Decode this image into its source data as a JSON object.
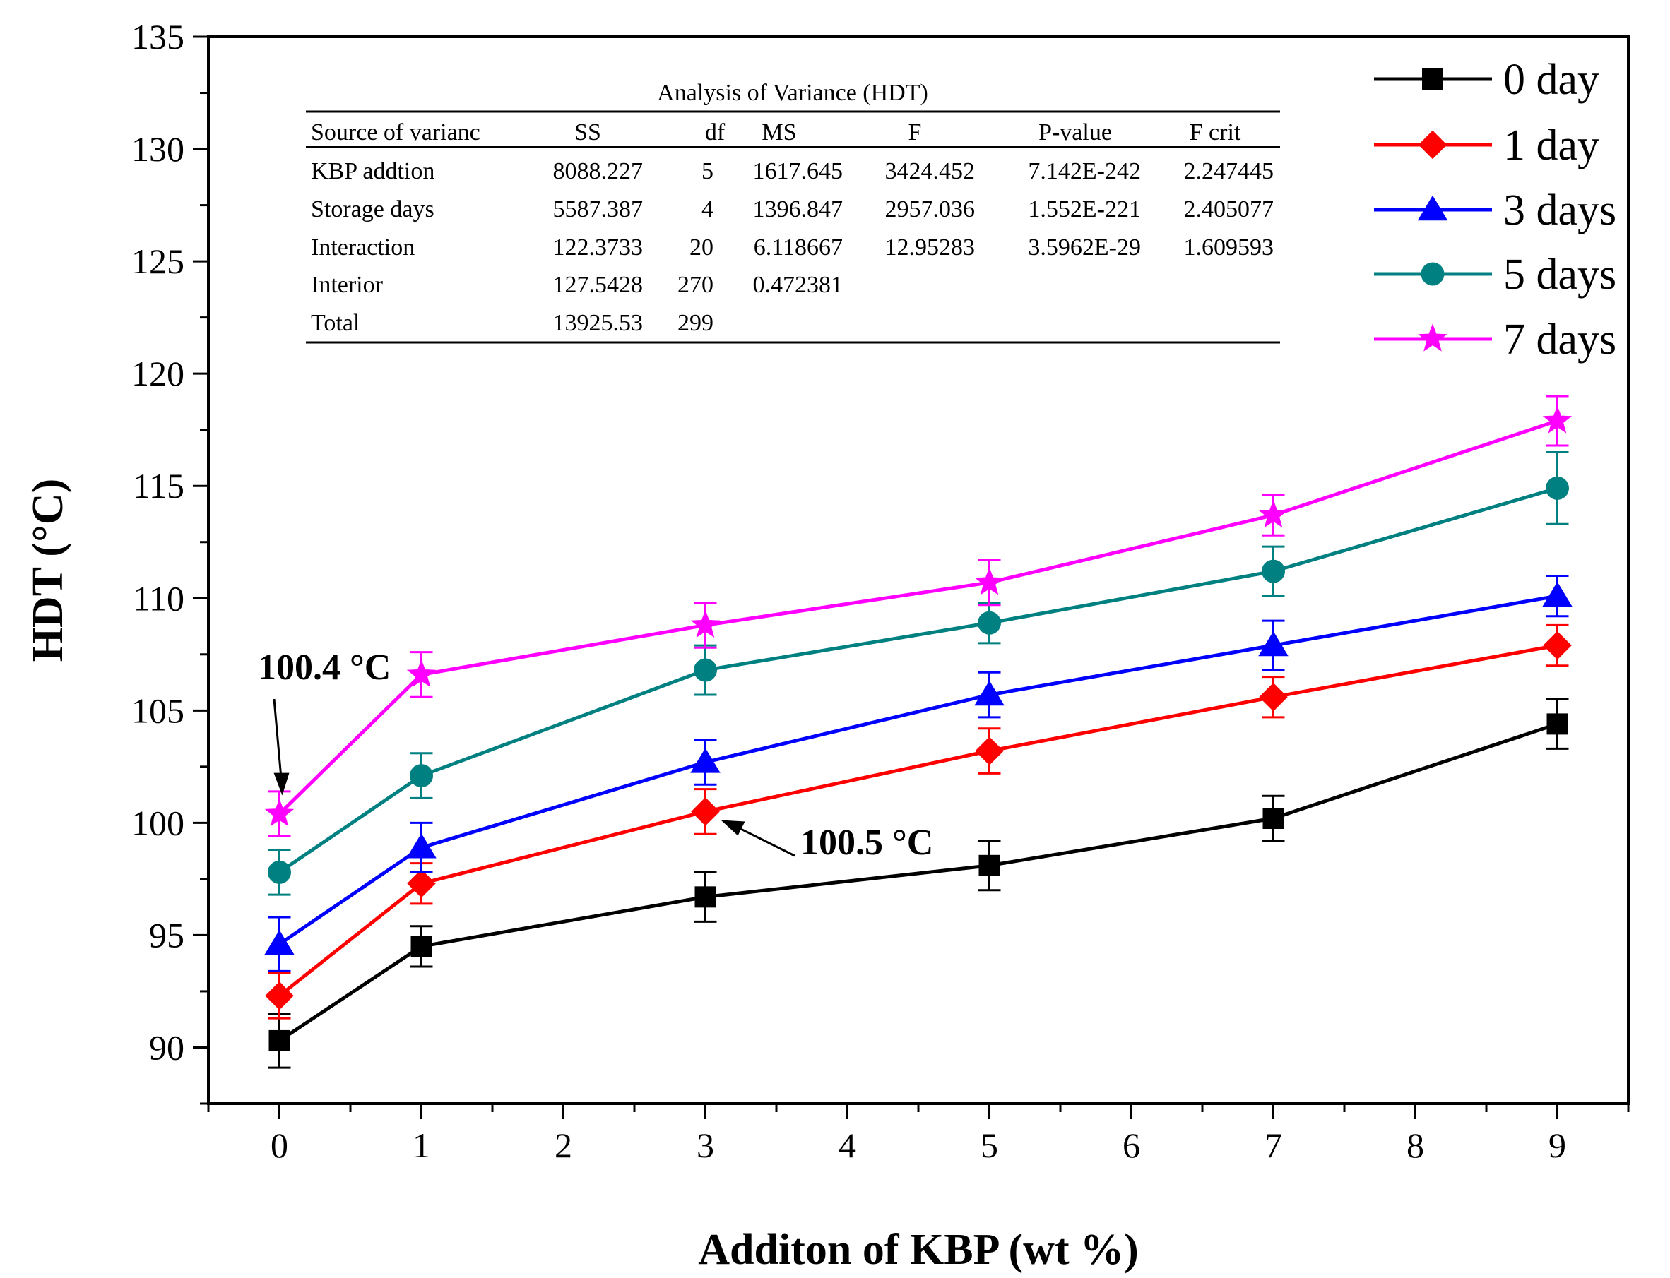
{
  "chart_data": {
    "type": "line",
    "xlabel": "Additon of KBP (wt %)",
    "ylabel": "HDT (°C)",
    "xlim": [
      -0.5,
      9.5
    ],
    "ylim": [
      87.5,
      135
    ],
    "x_ticks": [
      0,
      1,
      2,
      3,
      4,
      5,
      6,
      7,
      8,
      9
    ],
    "y_ticks": [
      90,
      95,
      100,
      105,
      110,
      115,
      120,
      125,
      130,
      135
    ],
    "legend_position": "top-right",
    "series": [
      {
        "name": "0 day",
        "color": "#000000",
        "marker": "square",
        "x": [
          0,
          1,
          3,
          5,
          7,
          9
        ],
        "y": [
          90.3,
          94.5,
          96.7,
          98.1,
          100.2,
          104.4
        ],
        "error": [
          1.2,
          0.9,
          1.1,
          1.1,
          1.0,
          1.1
        ]
      },
      {
        "name": "1 day",
        "color": "#ff0000",
        "marker": "diamond",
        "x": [
          0,
          1,
          3,
          5,
          7,
          9
        ],
        "y": [
          92.3,
          97.3,
          100.5,
          103.2,
          105.6,
          107.9
        ],
        "error": [
          1.0,
          0.9,
          1.0,
          1.0,
          0.9,
          0.9
        ]
      },
      {
        "name": "3 days",
        "color": "#0000ff",
        "marker": "triangle",
        "x": [
          0,
          1,
          3,
          5,
          7,
          9
        ],
        "y": [
          94.6,
          98.9,
          102.7,
          105.7,
          107.9,
          110.1
        ],
        "error": [
          1.2,
          1.1,
          1.0,
          1.0,
          1.1,
          0.9
        ]
      },
      {
        "name": "5 days",
        "color": "#008080",
        "marker": "circle",
        "x": [
          0,
          1,
          3,
          5,
          7,
          9
        ],
        "y": [
          97.8,
          102.1,
          106.8,
          108.9,
          111.2,
          114.9
        ],
        "error": [
          1.0,
          1.0,
          1.1,
          0.9,
          1.1,
          1.6
        ]
      },
      {
        "name": "7 days",
        "color": "#ff00ff",
        "marker": "star",
        "x": [
          0,
          1,
          3,
          5,
          7,
          9
        ],
        "y": [
          100.4,
          106.6,
          108.8,
          110.7,
          113.7,
          117.9
        ],
        "error": [
          1.0,
          1.0,
          1.0,
          1.0,
          0.9,
          1.1
        ]
      }
    ],
    "annotations": [
      {
        "text": "100.4 °C",
        "points_to": {
          "x": 0,
          "y": 100.4
        }
      },
      {
        "text": "100.5 °C",
        "points_to": {
          "x": 3,
          "y": 100.5
        }
      }
    ],
    "inset_table": {
      "title": "Analysis of Variance (HDT)",
      "columns": [
        "Source of varianc",
        "SS",
        "df",
        "MS",
        "F",
        "P-value",
        "F crit"
      ],
      "rows": [
        [
          "KBP addtion",
          "8088.227",
          "5",
          "1617.645",
          "3424.452",
          "7.142E-242",
          "2.247445"
        ],
        [
          "Storage days",
          "5587.387",
          "4",
          "1396.847",
          "2957.036",
          "1.552E-221",
          "2.405077"
        ],
        [
          "Interaction",
          "122.3733",
          "20",
          "6.118667",
          "12.95283",
          "3.5962E-29",
          "1.609593"
        ],
        [
          "Interior",
          "127.5428",
          "270",
          "0.472381",
          "",
          "",
          ""
        ],
        [
          "Total",
          "13925.53",
          "299",
          "",
          "",
          "",
          ""
        ]
      ]
    }
  }
}
